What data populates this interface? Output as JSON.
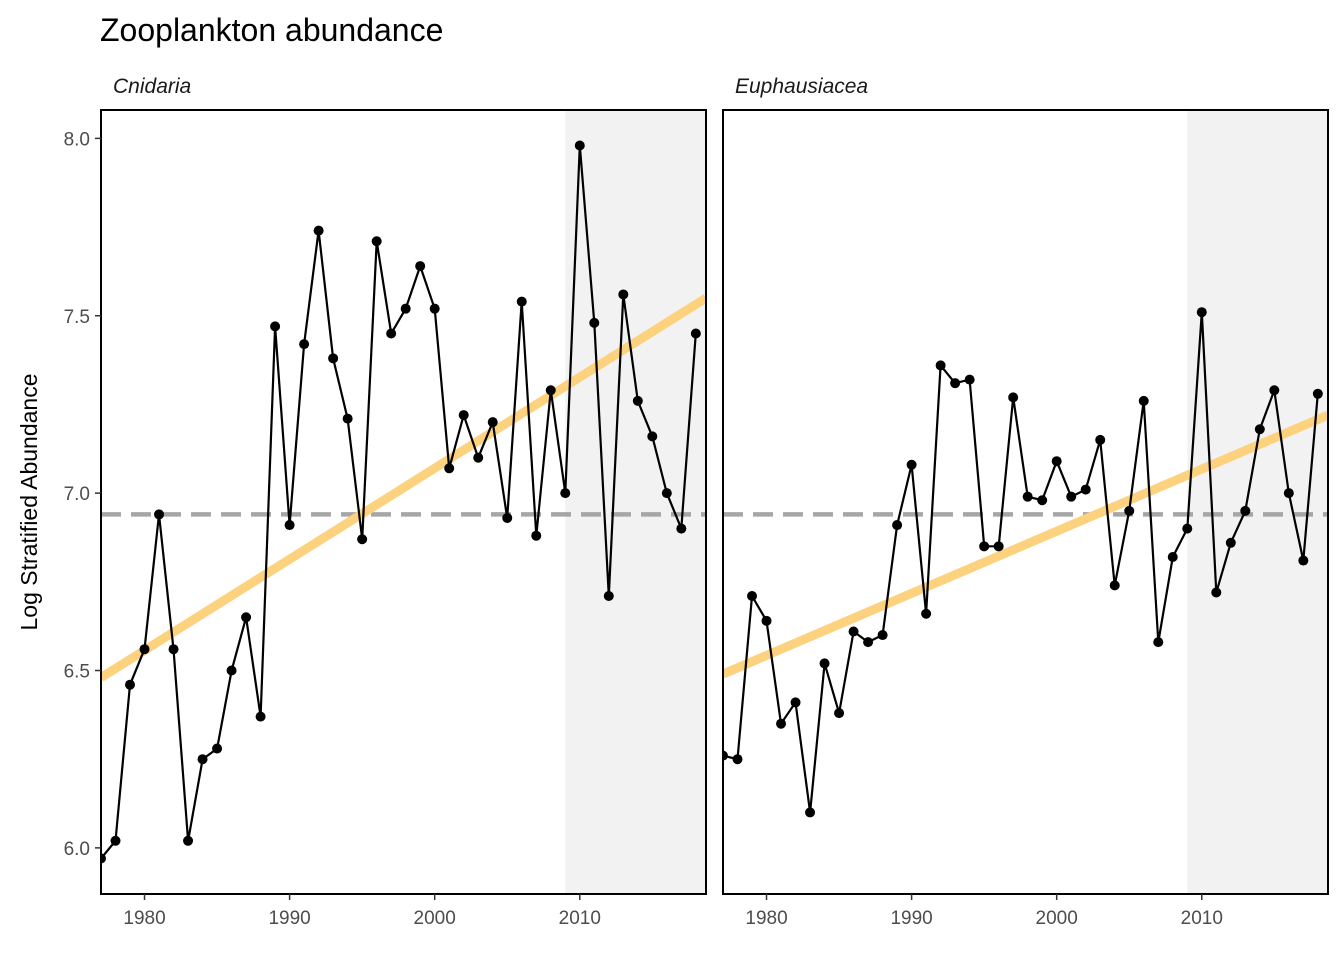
{
  "chart_data": {
    "type": "line",
    "title": "Zooplankton abundance",
    "ylabel": "Log Stratified Abundance",
    "xlabel": "",
    "xlim": [
      1977,
      2018.7
    ],
    "ylim": [
      5.87,
      8.08
    ],
    "x_ticks": [
      1980,
      1990,
      2000,
      2010
    ],
    "y_ticks": [
      6.0,
      6.5,
      7.0,
      7.5,
      8.0
    ],
    "y_tick_labels": [
      "6.0",
      "6.5",
      "7.0",
      "7.5",
      "8.0"
    ],
    "grid": false,
    "reference_line": {
      "y": 6.94,
      "style": "dashed",
      "color": "#a6a6a6"
    },
    "shaded_region": {
      "x": [
        2009,
        2018.7
      ],
      "color": "#f2f2f2"
    },
    "colors": {
      "series": "#000000",
      "trend": "#fdd27f",
      "reference": "#a6a6a6",
      "shade": "#f2f2f2"
    },
    "panels": [
      {
        "name": "Cnidaria",
        "x": [
          1977,
          1978,
          1979,
          1980,
          1981,
          1982,
          1983,
          1984,
          1985,
          1986,
          1987,
          1988,
          1989,
          1990,
          1991,
          1992,
          1993,
          1994,
          1995,
          1996,
          1997,
          1998,
          1999,
          2000,
          2001,
          2002,
          2003,
          2004,
          2005,
          2006,
          2007,
          2008,
          2009,
          2010,
          2011,
          2012,
          2013,
          2014,
          2015,
          2016,
          2017,
          2018
        ],
        "values": [
          5.97,
          6.02,
          6.46,
          6.56,
          6.94,
          6.56,
          6.02,
          6.25,
          6.28,
          6.5,
          6.65,
          6.37,
          7.47,
          6.91,
          7.42,
          7.74,
          7.38,
          7.21,
          6.87,
          7.71,
          7.45,
          7.52,
          7.64,
          7.52,
          7.07,
          7.22,
          7.1,
          7.2,
          6.93,
          7.54,
          6.88,
          7.29,
          7.0,
          7.98,
          7.48,
          6.71,
          7.56,
          7.26,
          7.16,
          7.0,
          6.9,
          7.45
        ],
        "trend": {
          "x": [
            1977,
            2018.7
          ],
          "y": [
            6.48,
            7.55
          ]
        }
      },
      {
        "name": "Euphausiacea",
        "x": [
          1977,
          1978,
          1979,
          1980,
          1981,
          1982,
          1983,
          1984,
          1985,
          1986,
          1987,
          1988,
          1989,
          1990,
          1991,
          1992,
          1993,
          1994,
          1995,
          1996,
          1997,
          1998,
          1999,
          2000,
          2001,
          2002,
          2003,
          2004,
          2005,
          2006,
          2007,
          2008,
          2009,
          2010,
          2011,
          2012,
          2013,
          2014,
          2015,
          2016,
          2017,
          2018
        ],
        "values": [
          6.26,
          6.25,
          6.71,
          6.64,
          6.35,
          6.41,
          6.1,
          6.52,
          6.38,
          6.61,
          6.58,
          6.6,
          6.91,
          7.08,
          6.66,
          7.36,
          7.31,
          7.32,
          6.85,
          6.85,
          7.27,
          6.99,
          6.98,
          7.09,
          6.99,
          7.01,
          7.15,
          6.74,
          6.95,
          7.26,
          6.58,
          6.82,
          6.9,
          7.51,
          6.72,
          6.86,
          6.95,
          7.18,
          7.29,
          7.0,
          6.81,
          7.28
        ],
        "trend": {
          "x": [
            1977,
            2018.7
          ],
          "y": [
            6.49,
            7.22
          ]
        }
      }
    ]
  }
}
